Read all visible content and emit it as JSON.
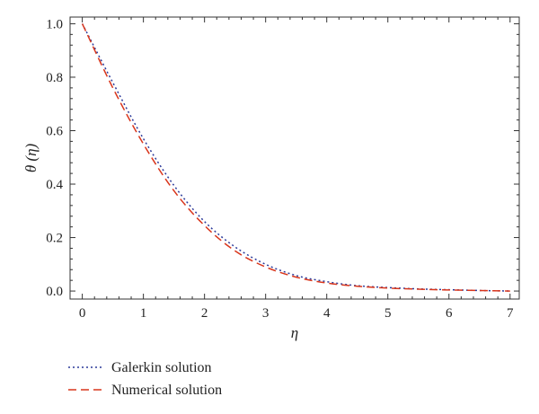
{
  "chart_data": {
    "type": "line",
    "xlabel": "η",
    "ylabel": "θ (η)",
    "xlim": [
      -0.2,
      7.15
    ],
    "ylim": [
      -0.03,
      1.025
    ],
    "x_ticks": [
      0,
      1,
      2,
      3,
      4,
      5,
      6,
      7
    ],
    "y_ticks": [
      0.0,
      0.2,
      0.4,
      0.6,
      0.8,
      1.0
    ],
    "x_tick_labels": [
      "0",
      "1",
      "2",
      "3",
      "4",
      "5",
      "6",
      "7"
    ],
    "y_tick_labels": [
      "0.0",
      "0.2",
      "0.4",
      "0.6",
      "0.8",
      "1.0"
    ],
    "grid": false,
    "legend_position": "bottom-left-outside",
    "series": [
      {
        "name": "Galerkin solution",
        "color": "#2b3a9a",
        "style": "dotted",
        "x": [
          0,
          0.5,
          1,
          1.5,
          2,
          2.5,
          3,
          3.5,
          4,
          4.5,
          5,
          5.5,
          6,
          6.5,
          7
        ],
        "y": [
          1.0,
          0.78,
          0.57,
          0.395,
          0.26,
          0.165,
          0.1,
          0.058,
          0.035,
          0.02,
          0.013,
          0.008,
          0.005,
          0.002,
          0.0
        ]
      },
      {
        "name": "Numerical solution",
        "color": "#d9361c",
        "style": "dashed",
        "x": [
          0,
          0.5,
          1,
          1.5,
          2,
          2.5,
          3,
          3.5,
          4,
          4.5,
          5,
          5.5,
          6,
          6.5,
          7
        ],
        "y": [
          1.0,
          0.76,
          0.55,
          0.375,
          0.245,
          0.15,
          0.09,
          0.052,
          0.03,
          0.018,
          0.011,
          0.007,
          0.004,
          0.002,
          0.0
        ]
      }
    ]
  }
}
